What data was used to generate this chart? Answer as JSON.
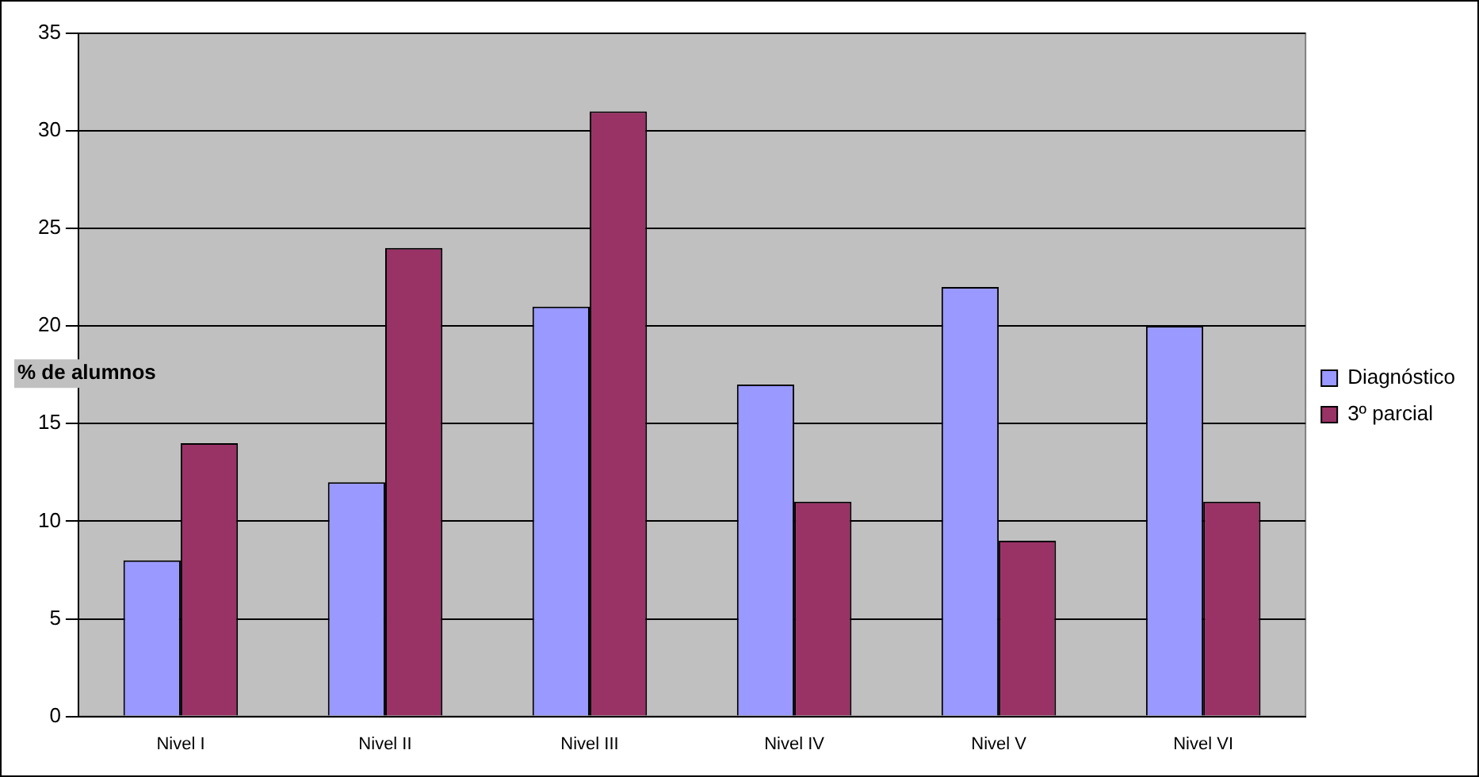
{
  "chart_data": {
    "type": "bar",
    "ylabel": "% de alumnos",
    "categories": [
      "Nivel I",
      "Nivel II",
      "Nivel III",
      "Nivel IV",
      "Nivel V",
      "Nivel VI"
    ],
    "series": [
      {
        "name": "Diagnóstico",
        "color": "#9999ff",
        "values": [
          8,
          12,
          21,
          17,
          22,
          20
        ]
      },
      {
        "name": "3º parcial",
        "color": "#993366",
        "values": [
          14,
          24,
          31,
          11,
          9,
          11
        ]
      }
    ],
    "ylim": [
      0,
      35
    ],
    "yticks": [
      0,
      5,
      10,
      15,
      20,
      25,
      30,
      35
    ],
    "grid": "y",
    "legend": "right"
  }
}
